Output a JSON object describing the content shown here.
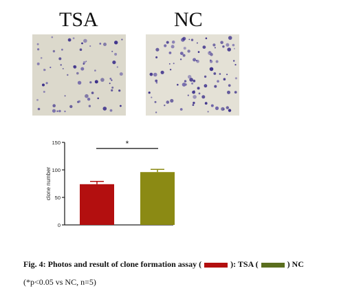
{
  "panels": {
    "left_title": "TSA",
    "right_title": "NC"
  },
  "chart_data": {
    "type": "bar",
    "categories": [
      "TSA",
      "NC"
    ],
    "values": [
      74,
      96
    ],
    "errors": [
      5,
      5
    ],
    "colors": [
      "#b30f0f",
      "#8b8a14"
    ],
    "ylabel": "clone number",
    "ylim": [
      0,
      150
    ],
    "yticks": [
      "0",
      "50",
      "100",
      "150"
    ],
    "significance": "*"
  },
  "caption": {
    "line1_part1": "Fig. 4: Photos and result of clone formation assay (",
    "line1_part2": "): TSA (",
    "line1_part3": ") NC",
    "line2": "(*p<0.05 vs NC, n=5)"
  }
}
